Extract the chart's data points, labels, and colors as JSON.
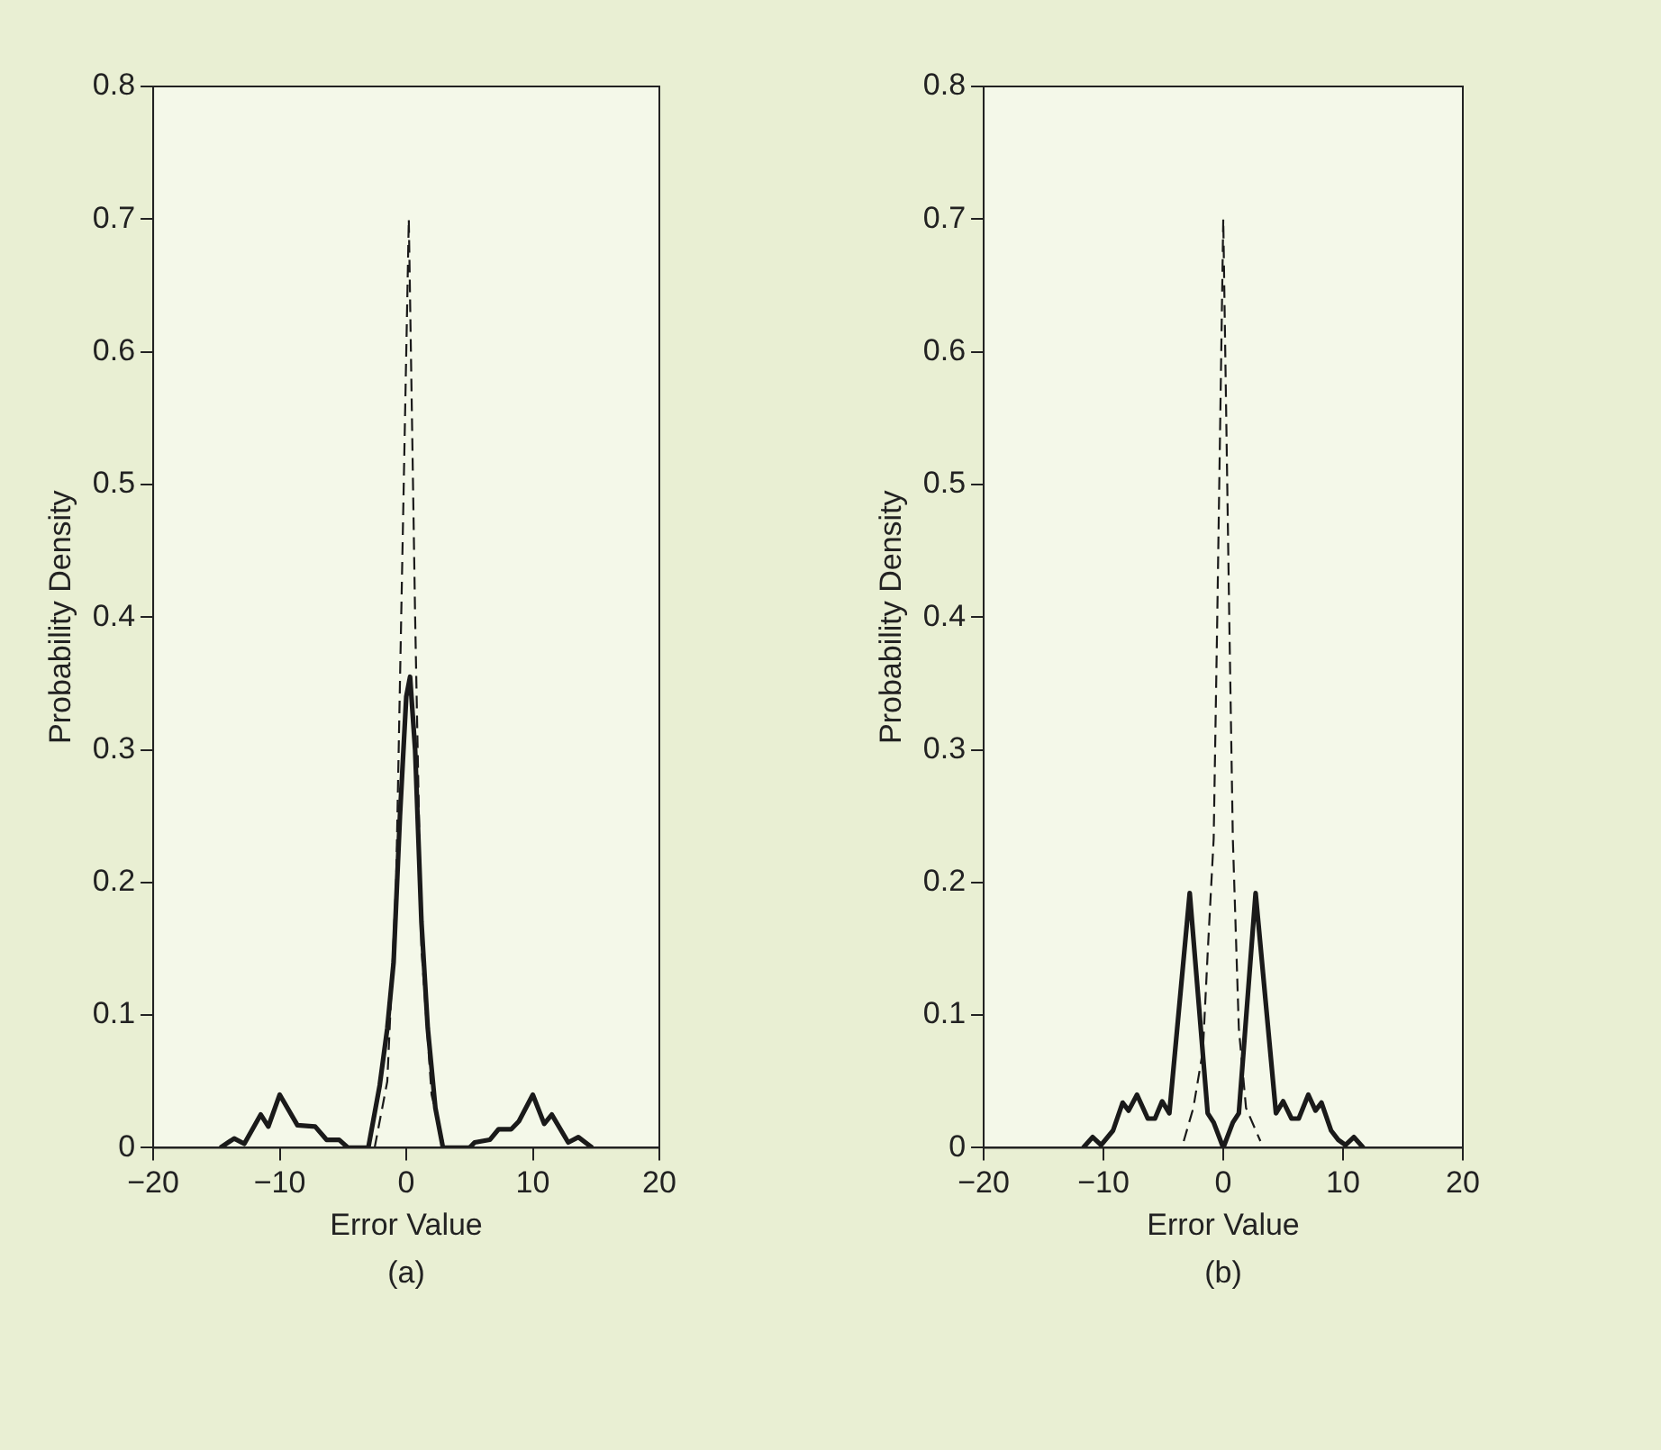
{
  "chart_data": [
    {
      "type": "line",
      "xlabel": "Error Value",
      "ylabel": "Probability Density",
      "annotations": [
        "(a)"
      ],
      "xlim": [
        -20,
        20
      ],
      "ylim": [
        0,
        0.8
      ],
      "xticks": [
        -20,
        -10,
        0,
        10,
        20
      ],
      "yticks": [
        0,
        0.1,
        0.2,
        0.3,
        0.4,
        0.5,
        0.6,
        0.7,
        0.8
      ],
      "grid": false,
      "legend": false,
      "marker": "none",
      "series": [
        {
          "color": "#1a1a1a",
          "line_style": "solid",
          "x": [
            -14.7,
            -13.6,
            -12.8,
            -11.5,
            -10.9,
            -10,
            -8.6,
            -7.2,
            -6.3,
            -5.3,
            -4.6,
            -3,
            -2.1,
            -1.5,
            -1,
            -0.5,
            0,
            0.3,
            0.7,
            1.2,
            1.7,
            2.3,
            2.9,
            5,
            5.4,
            6.6,
            7.3,
            8.3,
            8.9,
            10,
            10.9,
            11.5,
            12.8,
            13.6,
            14.7
          ],
          "values": [
            0,
            0.007,
            0.003,
            0.025,
            0.016,
            0.04,
            0.017,
            0.016,
            0.006,
            0.006,
            0,
            0,
            0.047,
            0.09,
            0.14,
            0.25,
            0.34,
            0.355,
            0.3,
            0.17,
            0.09,
            0.03,
            0,
            0,
            0.004,
            0.006,
            0.014,
            0.014,
            0.02,
            0.04,
            0.018,
            0.025,
            0.004,
            0.008,
            0
          ]
        },
        {
          "color": "#1a1a1a",
          "line_style": "dashed",
          "x": [
            -2.5,
            -1.5,
            -0.8,
            -0.3,
            0.2,
            0.7,
            1.2,
            2,
            3
          ],
          "values": [
            0,
            0.05,
            0.2,
            0.45,
            0.7,
            0.4,
            0.15,
            0.04,
            0
          ]
        }
      ]
    },
    {
      "type": "line",
      "xlabel": "Error Value",
      "ylabel": "Probability Density",
      "annotations": [
        "(b)"
      ],
      "xlim": [
        -20,
        20
      ],
      "ylim": [
        0,
        0.8
      ],
      "xticks": [
        -20,
        -10,
        0,
        10,
        20
      ],
      "yticks": [
        0,
        0.1,
        0.2,
        0.3,
        0.4,
        0.5,
        0.6,
        0.7,
        0.8
      ],
      "grid": false,
      "legend": false,
      "marker": "none",
      "series": [
        {
          "color": "#1a1a1a",
          "line_style": "solid",
          "x": [
            -11.7,
            -10.9,
            -10.2,
            -9.2,
            -8.4,
            -7.9,
            -7.2,
            -6.3,
            -5.7,
            -5.1,
            -4.5,
            -2.8,
            -1.3,
            -0.8,
            0,
            0.8,
            1.3,
            2.7,
            4.4,
            5,
            5.7,
            6.3,
            7.1,
            7.7,
            8.2,
            9,
            9.6,
            10.2,
            10.9,
            11.7
          ],
          "values": [
            0,
            0.008,
            0.002,
            0.013,
            0.034,
            0.028,
            0.04,
            0.022,
            0.022,
            0.035,
            0.026,
            0.192,
            0.026,
            0.019,
            0,
            0.019,
            0.026,
            0.192,
            0.026,
            0.035,
            0.022,
            0.022,
            0.04,
            0.028,
            0.034,
            0.013,
            0.006,
            0.002,
            0.008,
            0
          ]
        },
        {
          "color": "#1a1a1a",
          "line_style": "dashed",
          "x": [
            -3.3,
            -2.5,
            -1.7,
            -1.3,
            -0.8,
            -0.5,
            0,
            0.5,
            0.8,
            1.3,
            1.9,
            3.1
          ],
          "values": [
            0.005,
            0.03,
            0.073,
            0.147,
            0.233,
            0.4,
            0.7,
            0.4,
            0.233,
            0.09,
            0.03,
            0.005
          ]
        }
      ]
    }
  ]
}
